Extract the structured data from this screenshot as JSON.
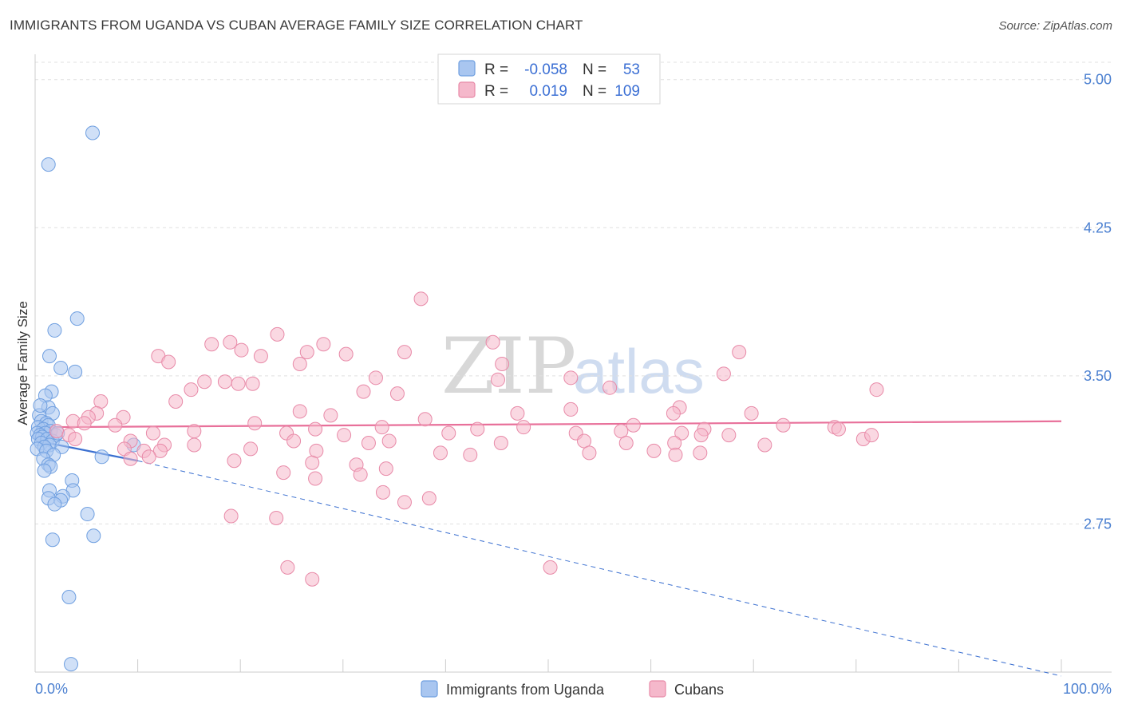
{
  "title": "IMMIGRANTS FROM UGANDA VS CUBAN AVERAGE FAMILY SIZE CORRELATION CHART",
  "source": "Source: ZipAtlas.com",
  "watermark": {
    "part1": "ZIP",
    "part2": "atlas"
  },
  "legend": {
    "row1": {
      "r_label": "R =",
      "r_value": "-0.058",
      "n_label": "N =",
      "n_value": "53"
    },
    "row2": {
      "r_label": "R =",
      "r_value": "0.019",
      "n_label": "N =",
      "n_value": "109"
    }
  },
  "bottom_legend": {
    "series1": "Immigrants from Uganda",
    "series2": "Cubans"
  },
  "colors": {
    "blue_fill": "#a9c6f0",
    "blue_stroke": "#6f9fe0",
    "blue_line": "#3a6fd0",
    "pink_fill": "#f5b8cb",
    "pink_stroke": "#e88aa8",
    "pink_line": "#e8709a",
    "axis_label": "#4a7fd0",
    "grid": "#e0e0e0"
  },
  "chart_data": {
    "type": "scatter",
    "title": "IMMIGRANTS FROM UGANDA VS CUBAN AVERAGE FAMILY SIZE CORRELATION CHART",
    "xlabel": "",
    "ylabel": "Average Family Size",
    "xlim": [
      0,
      100
    ],
    "ylim": [
      2.0,
      5.12
    ],
    "x_tick_labels": [
      "0.0%",
      "100.0%"
    ],
    "y_ticks": [
      2.75,
      3.5,
      4.25,
      5.0
    ],
    "y_tick_labels": [
      "2.75",
      "3.50",
      "4.25",
      "5.00"
    ],
    "series": [
      {
        "name": "Immigrants from Uganda",
        "r": -0.058,
        "n": 53,
        "trend": {
          "x0": 0.3,
          "y0": 3.17,
          "x1": 10,
          "y1": 3.07,
          "dashed_to_x": 100,
          "dashed_to_y": 1.98
        },
        "points": [
          [
            5.6,
            4.73
          ],
          [
            1.3,
            4.57
          ],
          [
            4.1,
            3.79
          ],
          [
            1.9,
            3.73
          ],
          [
            1.4,
            3.6
          ],
          [
            2.5,
            3.54
          ],
          [
            3.9,
            3.52
          ],
          [
            1.6,
            3.42
          ],
          [
            1.0,
            3.4
          ],
          [
            1.3,
            3.34
          ],
          [
            1.7,
            3.31
          ],
          [
            0.4,
            3.3
          ],
          [
            0.6,
            3.27
          ],
          [
            1.1,
            3.26
          ],
          [
            1.3,
            3.25
          ],
          [
            0.3,
            3.24
          ],
          [
            0.8,
            3.23
          ],
          [
            1.5,
            3.22
          ],
          [
            0.2,
            3.21
          ],
          [
            1.0,
            3.21
          ],
          [
            2.0,
            3.2
          ],
          [
            0.5,
            3.2
          ],
          [
            0.7,
            3.19
          ],
          [
            0.3,
            3.18
          ],
          [
            1.2,
            3.18
          ],
          [
            1.7,
            3.17
          ],
          [
            0.6,
            3.16
          ],
          [
            1.4,
            3.15
          ],
          [
            0.9,
            3.14
          ],
          [
            2.6,
            3.14
          ],
          [
            0.2,
            3.13
          ],
          [
            1.1,
            3.12
          ],
          [
            1.8,
            3.1
          ],
          [
            9.6,
            3.15
          ],
          [
            6.5,
            3.09
          ],
          [
            0.8,
            3.08
          ],
          [
            1.3,
            3.05
          ],
          [
            1.5,
            3.04
          ],
          [
            0.9,
            3.02
          ],
          [
            3.6,
            2.97
          ],
          [
            1.4,
            2.92
          ],
          [
            3.7,
            2.92
          ],
          [
            2.7,
            2.89
          ],
          [
            1.3,
            2.88
          ],
          [
            2.5,
            2.87
          ],
          [
            1.9,
            2.85
          ],
          [
            5.1,
            2.8
          ],
          [
            5.7,
            2.69
          ],
          [
            1.7,
            2.67
          ],
          [
            3.3,
            2.38
          ],
          [
            3.5,
            2.04
          ],
          [
            0.5,
            3.35
          ],
          [
            2.2,
            3.21
          ]
        ]
      },
      {
        "name": "Cubans",
        "r": 0.019,
        "n": 109,
        "trend": {
          "x0": 0.3,
          "y0": 3.24,
          "x1": 100,
          "y1": 3.27
        },
        "points": [
          [
            37.6,
            3.89
          ],
          [
            23.6,
            3.71
          ],
          [
            17.2,
            3.66
          ],
          [
            19.0,
            3.67
          ],
          [
            28.1,
            3.66
          ],
          [
            44.6,
            3.67
          ],
          [
            20.1,
            3.63
          ],
          [
            26.5,
            3.62
          ],
          [
            36.0,
            3.62
          ],
          [
            12.0,
            3.6
          ],
          [
            22.0,
            3.6
          ],
          [
            30.3,
            3.61
          ],
          [
            13.0,
            3.57
          ],
          [
            25.8,
            3.56
          ],
          [
            45.5,
            3.56
          ],
          [
            68.6,
            3.62
          ],
          [
            67.1,
            3.51
          ],
          [
            33.2,
            3.49
          ],
          [
            45.1,
            3.48
          ],
          [
            52.2,
            3.49
          ],
          [
            56.0,
            3.44
          ],
          [
            16.5,
            3.47
          ],
          [
            18.5,
            3.47
          ],
          [
            19.8,
            3.46
          ],
          [
            21.2,
            3.46
          ],
          [
            15.2,
            3.43
          ],
          [
            32.0,
            3.42
          ],
          [
            35.3,
            3.41
          ],
          [
            13.7,
            3.37
          ],
          [
            6.4,
            3.37
          ],
          [
            82.0,
            3.43
          ],
          [
            62.8,
            3.34
          ],
          [
            52.2,
            3.33
          ],
          [
            6.0,
            3.31
          ],
          [
            25.8,
            3.32
          ],
          [
            28.8,
            3.3
          ],
          [
            47.0,
            3.31
          ],
          [
            69.8,
            3.31
          ],
          [
            5.2,
            3.29
          ],
          [
            8.6,
            3.29
          ],
          [
            38.0,
            3.28
          ],
          [
            3.7,
            3.27
          ],
          [
            4.8,
            3.26
          ],
          [
            7.8,
            3.25
          ],
          [
            21.4,
            3.26
          ],
          [
            27.3,
            3.23
          ],
          [
            33.8,
            3.24
          ],
          [
            43.1,
            3.23
          ],
          [
            47.6,
            3.24
          ],
          [
            58.3,
            3.25
          ],
          [
            65.2,
            3.23
          ],
          [
            72.9,
            3.25
          ],
          [
            77.9,
            3.24
          ],
          [
            78.3,
            3.23
          ],
          [
            2.1,
            3.22
          ],
          [
            3.3,
            3.2
          ],
          [
            11.5,
            3.21
          ],
          [
            15.5,
            3.22
          ],
          [
            24.5,
            3.21
          ],
          [
            30.1,
            3.2
          ],
          [
            40.3,
            3.21
          ],
          [
            52.7,
            3.21
          ],
          [
            57.1,
            3.22
          ],
          [
            63.0,
            3.21
          ],
          [
            64.9,
            3.2
          ],
          [
            67.6,
            3.2
          ],
          [
            3.9,
            3.18
          ],
          [
            9.3,
            3.17
          ],
          [
            12.6,
            3.15
          ],
          [
            15.5,
            3.15
          ],
          [
            25.2,
            3.17
          ],
          [
            32.5,
            3.16
          ],
          [
            34.5,
            3.17
          ],
          [
            45.4,
            3.16
          ],
          [
            53.5,
            3.17
          ],
          [
            57.6,
            3.16
          ],
          [
            62.3,
            3.16
          ],
          [
            71.1,
            3.15
          ],
          [
            80.7,
            3.18
          ],
          [
            81.5,
            3.2
          ],
          [
            8.7,
            3.13
          ],
          [
            10.6,
            3.12
          ],
          [
            12.2,
            3.12
          ],
          [
            21.0,
            3.13
          ],
          [
            27.4,
            3.12
          ],
          [
            39.5,
            3.11
          ],
          [
            42.4,
            3.1
          ],
          [
            54.0,
            3.11
          ],
          [
            60.3,
            3.12
          ],
          [
            62.4,
            3.1
          ],
          [
            64.8,
            3.11
          ],
          [
            9.3,
            3.08
          ],
          [
            11.1,
            3.09
          ],
          [
            19.4,
            3.07
          ],
          [
            27.0,
            3.06
          ],
          [
            31.3,
            3.05
          ],
          [
            34.2,
            3.03
          ],
          [
            24.2,
            3.01
          ],
          [
            31.7,
            3.0
          ],
          [
            27.3,
            2.98
          ],
          [
            33.9,
            2.91
          ],
          [
            36.0,
            2.86
          ],
          [
            38.4,
            2.88
          ],
          [
            19.1,
            2.79
          ],
          [
            23.5,
            2.78
          ],
          [
            24.6,
            2.53
          ],
          [
            27.0,
            2.47
          ],
          [
            50.2,
            2.53
          ],
          [
            62.2,
            3.31
          ]
        ]
      }
    ]
  }
}
